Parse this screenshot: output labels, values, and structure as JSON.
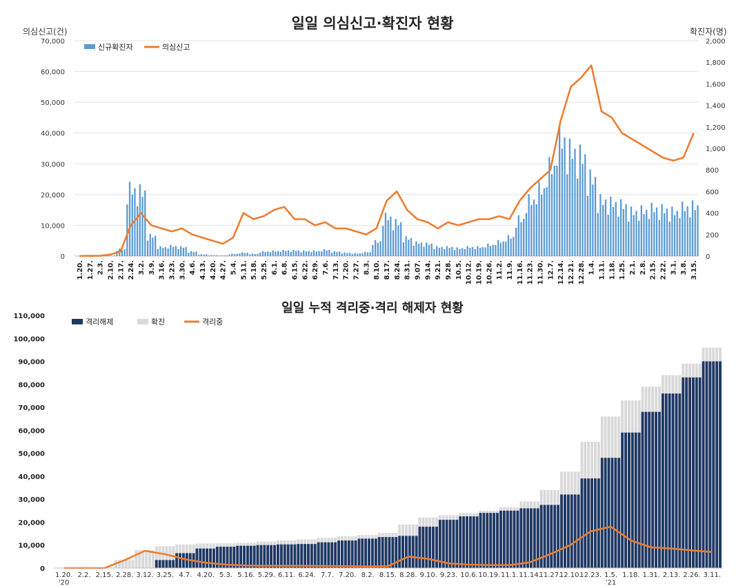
{
  "chart_data": [
    {
      "type": "bar+line",
      "title": "일일 의심신고·확진자 현황",
      "ylabel_left": "의심신고(건)",
      "ylabel_right": "확진자(명)",
      "ylim_left": [
        0,
        70000
      ],
      "ylim_right": [
        0,
        2000
      ],
      "yticks_left": [
        "0",
        "10,000",
        "20,000",
        "30,000",
        "40,000",
        "50,000",
        "60,000",
        "70,000"
      ],
      "yticks_right": [
        "0",
        "200",
        "400",
        "600",
        "800",
        "1,000",
        "1,200",
        "1,400",
        "1,600",
        "1,800",
        "2,000"
      ],
      "categories": [
        "1.20.",
        "1.27.",
        "2.3.",
        "2.10.",
        "2.17.",
        "2.24.",
        "3.2.",
        "3.9.",
        "3.16.",
        "3.23.",
        "3.30.",
        "4.6.",
        "4.13.",
        "4.20.",
        "4.27.",
        "5.4.",
        "5.11.",
        "5.18.",
        "5.25.",
        "6.1.",
        "6.8.",
        "6.15.",
        "6.22.",
        "6.29.",
        "7.6.",
        "7.13.",
        "7.20.",
        "7.27.",
        "8.3.",
        "8.10.",
        "8.17.",
        "8.24.",
        "8.31.",
        "9.07.",
        "9.14.",
        "9.21.",
        "9.28.",
        "10.5.",
        "10.12.",
        "10.19.",
        "10.26.",
        "11.2.",
        "11.9.",
        "11.16.",
        "11.23.",
        "11.30.",
        "12.7.",
        "12.14.",
        "12.21.",
        "12.28.",
        "1.4.",
        "1.11.",
        "1.18.",
        "1.25.",
        "2.1.",
        "2.8.",
        "2.15.",
        "2.22.",
        "3.1.",
        "3.8.",
        "3.15."
      ],
      "legend": [
        {
          "name": "신규확진자",
          "color": "#5b9bd5"
        },
        {
          "name": "의심신고",
          "color": "#ed7d31"
        }
      ],
      "series": [
        {
          "name": "신규확진자",
          "axis": "right",
          "kind": "bar",
          "values": [
            1,
            2,
            3,
            5,
            60,
            600,
            580,
            180,
            80,
            90,
            80,
            40,
            15,
            8,
            6,
            20,
            30,
            20,
            40,
            45,
            50,
            50,
            45,
            45,
            55,
            40,
            30,
            25,
            35,
            130,
            350,
            300,
            160,
            120,
            110,
            80,
            80,
            70,
            80,
            80,
            100,
            130,
            170,
            330,
            500,
            600,
            800,
            1050,
            950,
            900,
            700,
            500,
            480,
            460,
            400,
            410,
            430,
            420,
            400,
            440,
            450
          ]
        },
        {
          "name": "의심신고",
          "axis": "left",
          "kind": "line",
          "values": [
            50,
            60,
            100,
            500,
            1500,
            10000,
            14000,
            10000,
            9000,
            8000,
            9000,
            7000,
            6000,
            5000,
            4000,
            6000,
            14000,
            12000,
            13000,
            15000,
            16000,
            12000,
            12000,
            10000,
            11000,
            9000,
            9000,
            8000,
            7000,
            9000,
            18000,
            21000,
            15000,
            12000,
            11000,
            9000,
            11000,
            10000,
            11000,
            12000,
            12000,
            13000,
            12000,
            18000,
            22000,
            25000,
            28000,
            44000,
            55000,
            58000,
            62000,
            47000,
            45000,
            40000,
            38000,
            36000,
            34000,
            32000,
            31000,
            32000,
            40000
          ]
        }
      ]
    },
    {
      "type": "bar+line",
      "title": "일일 누적 격리중·격리 해제자 현황",
      "ylim": [
        0,
        110000
      ],
      "yticks": [
        "0",
        "10,000",
        "20,000",
        "30,000",
        "40,000",
        "50,000",
        "60,000",
        "70,000",
        "80,000",
        "90,000",
        "100,000",
        "110,000"
      ],
      "categories": [
        "1.20.",
        "2.2.",
        "2.15.",
        "2.28.",
        "3.12.",
        "3.25.",
        "4.7.",
        "4.20.",
        "5.3.",
        "5.16.",
        "5.29.",
        "6.11.",
        "6.24.",
        "7.7.",
        "7.20.",
        "8.2.",
        "8.15.",
        "8.28.",
        "9.10.",
        "9.23.",
        "10.6.",
        "10.19.",
        "11.1.",
        "11.14.",
        "11.27.",
        "12.10.",
        "12.23.",
        "1.5.",
        "1.18.",
        "1.31.",
        "2.13.",
        "2.26.",
        "3.11."
      ],
      "year_labels": [
        "'20",
        "'21"
      ],
      "legend": [
        {
          "name": "격리해제",
          "color": "#1f3864"
        },
        {
          "name": "확진",
          "color": "#d9d9d9"
        },
        {
          "name": "격리중",
          "color": "#ed7d31"
        }
      ],
      "series": [
        {
          "name": "확진",
          "kind": "bar",
          "values": [
            10,
            20,
            28,
            3500,
            7800,
            9500,
            10300,
            10700,
            10800,
            11000,
            11500,
            12000,
            12500,
            13200,
            13900,
            14400,
            15300,
            19000,
            22000,
            23000,
            24000,
            25000,
            26500,
            29000,
            34000,
            42000,
            55000,
            66000,
            73000,
            79000,
            84000,
            89000,
            96000
          ]
        },
        {
          "name": "격리해제",
          "kind": "bar",
          "values": [
            0,
            2,
            16,
            20,
            100,
            3500,
            6500,
            8500,
            9300,
            9700,
            10000,
            10300,
            10500,
            11200,
            12000,
            12800,
            13500,
            14000,
            18000,
            21000,
            22500,
            24000,
            25000,
            26000,
            27500,
            32000,
            39000,
            48000,
            59000,
            68000,
            76000,
            83000,
            90000
          ]
        },
        {
          "name": "격리중",
          "kind": "line",
          "values": [
            10,
            18,
            12,
            3500,
            7500,
            6000,
            3800,
            2300,
            1500,
            1100,
            1000,
            1000,
            1000,
            900,
            800,
            700,
            800,
            5000,
            4000,
            2000,
            1500,
            1300,
            1300,
            2500,
            6000,
            10000,
            16000,
            18000,
            12000,
            9000,
            8500,
            7700,
            7000
          ]
        }
      ]
    }
  ]
}
